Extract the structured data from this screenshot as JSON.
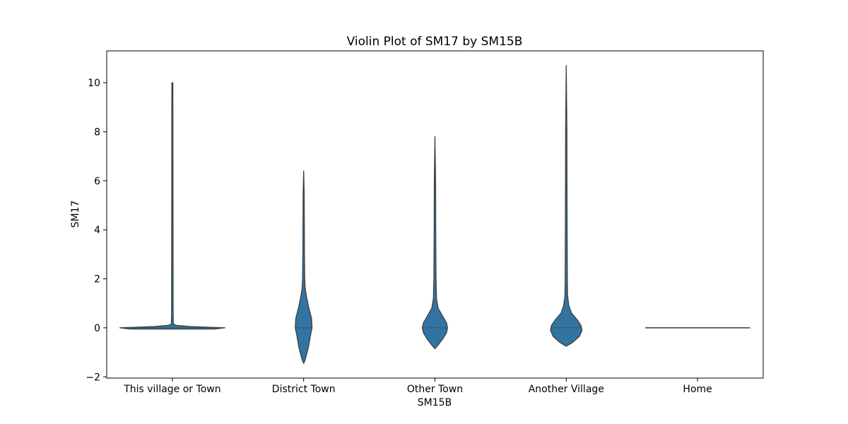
{
  "chart_data": {
    "type": "violin",
    "title": "Violin Plot of SM17 by SM15B",
    "xlabel": "SM15B",
    "ylabel": "SM17",
    "categories": [
      "This village or Town",
      "District Town",
      "Other Town",
      "Another Village",
      "Home"
    ],
    "yticks": [
      -2,
      0,
      2,
      4,
      6,
      8,
      10
    ],
    "ylim": [
      -2.05,
      11.3
    ],
    "grid": false,
    "fill_color": "#3274a1",
    "edge_color": "#3d3d3d",
    "violins": [
      {
        "category": "This village or Town",
        "median": 0,
        "profile": [
          [
            -0.05,
            0.8
          ],
          [
            0.0,
            1.0
          ],
          [
            0.05,
            0.35
          ],
          [
            0.1,
            0.08
          ],
          [
            0.15,
            0.02
          ],
          [
            0.5,
            0.015
          ],
          [
            10.0,
            0.01
          ]
        ]
      },
      {
        "category": "District Town",
        "median": 0,
        "profile": [
          [
            -1.45,
            0.0
          ],
          [
            -1.3,
            0.03
          ],
          [
            -0.8,
            0.09
          ],
          [
            -0.3,
            0.13
          ],
          [
            0.0,
            0.16
          ],
          [
            0.4,
            0.15
          ],
          [
            0.8,
            0.1
          ],
          [
            1.2,
            0.06
          ],
          [
            1.6,
            0.03
          ],
          [
            2.0,
            0.02
          ],
          [
            3.0,
            0.015
          ],
          [
            4.5,
            0.012
          ],
          [
            5.5,
            0.01
          ],
          [
            6.4,
            0.0
          ]
        ]
      },
      {
        "category": "Other Town",
        "median": 0,
        "profile": [
          [
            -0.85,
            0.0
          ],
          [
            -0.7,
            0.06
          ],
          [
            -0.45,
            0.15
          ],
          [
            -0.2,
            0.22
          ],
          [
            0.0,
            0.24
          ],
          [
            0.2,
            0.22
          ],
          [
            0.5,
            0.14
          ],
          [
            0.8,
            0.06
          ],
          [
            1.2,
            0.03
          ],
          [
            2.0,
            0.02
          ],
          [
            4.0,
            0.015
          ],
          [
            6.0,
            0.012
          ],
          [
            7.8,
            0.0
          ]
        ]
      },
      {
        "category": "Another Village",
        "median": 0,
        "profile": [
          [
            -0.75,
            0.0
          ],
          [
            -0.6,
            0.12
          ],
          [
            -0.35,
            0.25
          ],
          [
            -0.1,
            0.3
          ],
          [
            0.1,
            0.28
          ],
          [
            0.35,
            0.2
          ],
          [
            0.6,
            0.1
          ],
          [
            0.9,
            0.05
          ],
          [
            1.3,
            0.025
          ],
          [
            2.0,
            0.02
          ],
          [
            5.0,
            0.015
          ],
          [
            8.0,
            0.012
          ],
          [
            10.7,
            0.0
          ]
        ]
      },
      {
        "category": "Home",
        "median": 0,
        "profile": [
          [
            0.0,
            1.0
          ]
        ]
      }
    ]
  }
}
